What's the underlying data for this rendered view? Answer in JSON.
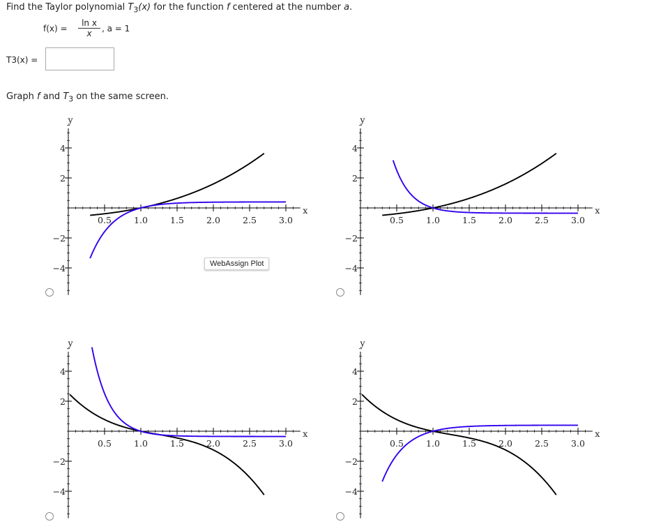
{
  "question": {
    "prefix": "Find the Taylor polynomial ",
    "poly_symbol": "T",
    "poly_sub": "3",
    "poly_arg": "(x)",
    "middle": " for the function ",
    "func": "f",
    "suffix": " centered at the number ",
    "center_var": "a",
    "end": "."
  },
  "formula": {
    "lhs": "f(x) =",
    "numerator": "ln x",
    "denominator": "x",
    "a_text": ",  a = 1"
  },
  "answer": {
    "label": "T3(x) =",
    "value": ""
  },
  "graph_prompt": {
    "prefix": "Graph ",
    "f": "f",
    "and": " and ",
    "t3": "T",
    "t3_sub": "3",
    "suffix": "  on the same screen."
  },
  "webassign_badge": "WebAssign Plot",
  "colors": {
    "f_curve": "#000000",
    "t3_curve": "#3300ee",
    "axis": "#000000"
  },
  "chart_data": [
    {
      "type": "line",
      "option": "A",
      "xlabel": "x",
      "ylabel": "y",
      "xlim": [
        0.0,
        3.1
      ],
      "ylim": [
        -5,
        5
      ],
      "xticks": [
        "0.5",
        "1.0",
        "1.5",
        "2.0",
        "2.5",
        "3.0"
      ],
      "yticks": [
        "4",
        "2",
        "-2",
        "-4"
      ],
      "series": [
        {
          "id": "black",
          "formula": "(x-1)+0.5*(x-1)^2+0.1*(x-1)^3",
          "x_start": 0.3,
          "x_end": 2.7
        },
        {
          "id": "blue",
          "formula": "0.4-0.4*exp(-3.2*(x-1))",
          "x_start": 0.3,
          "x_end": 3.0
        }
      ]
    },
    {
      "type": "line",
      "option": "B",
      "xlabel": "x",
      "ylabel": "y",
      "xlim": [
        0.0,
        3.1
      ],
      "ylim": [
        -5,
        5
      ],
      "xticks": [
        "0.5",
        "1.0",
        "1.5",
        "2.0",
        "2.5",
        "3.0"
      ],
      "yticks": [
        "4",
        "2",
        "-2",
        "-4"
      ],
      "series": [
        {
          "id": "black",
          "formula": "(x-1)+0.5*(x-1)^2+0.1*(x-1)^3",
          "x_start": 0.3,
          "x_end": 2.7
        },
        {
          "id": "blue",
          "formula": "-0.35+0.35*exp(-4.2*(x-1))",
          "x_start": 0.45,
          "x_end": 3.0
        }
      ]
    },
    {
      "type": "line",
      "option": "C",
      "xlabel": "x",
      "ylabel": "y",
      "xlim": [
        0.0,
        3.1
      ],
      "ylim": [
        -5,
        5
      ],
      "xticks": [
        "0.5",
        "1.0",
        "1.5",
        "2.0",
        "2.5",
        "3.0"
      ],
      "yticks": [
        "4",
        "2",
        "-2",
        "-4"
      ],
      "series": [
        {
          "id": "black",
          "formula": "-(x-1)+0.65*(x-1)^2-0.9*(x-1)^3",
          "x_start": 0.02,
          "x_end": 2.7
        },
        {
          "id": "blue",
          "formula": "-0.35+0.35*exp(-4.2*(x-1))",
          "x_start": 0.3,
          "x_end": 3.0
        }
      ]
    },
    {
      "type": "line",
      "option": "D",
      "xlabel": "x",
      "ylabel": "y",
      "xlim": [
        0.0,
        3.1
      ],
      "ylim": [
        -5,
        5
      ],
      "xticks": [
        "0.5",
        "1.0",
        "1.5",
        "2.0",
        "2.5",
        "3.0"
      ],
      "yticks": [
        "4",
        "2",
        "-2",
        "-4"
      ],
      "series": [
        {
          "id": "black",
          "formula": "-(x-1)+0.65*(x-1)^2-0.9*(x-1)^3",
          "x_start": 0.02,
          "x_end": 2.7
        },
        {
          "id": "blue",
          "formula": "0.4-0.4*exp(-3.2*(x-1))",
          "x_start": 0.3,
          "x_end": 3.0
        }
      ]
    }
  ]
}
